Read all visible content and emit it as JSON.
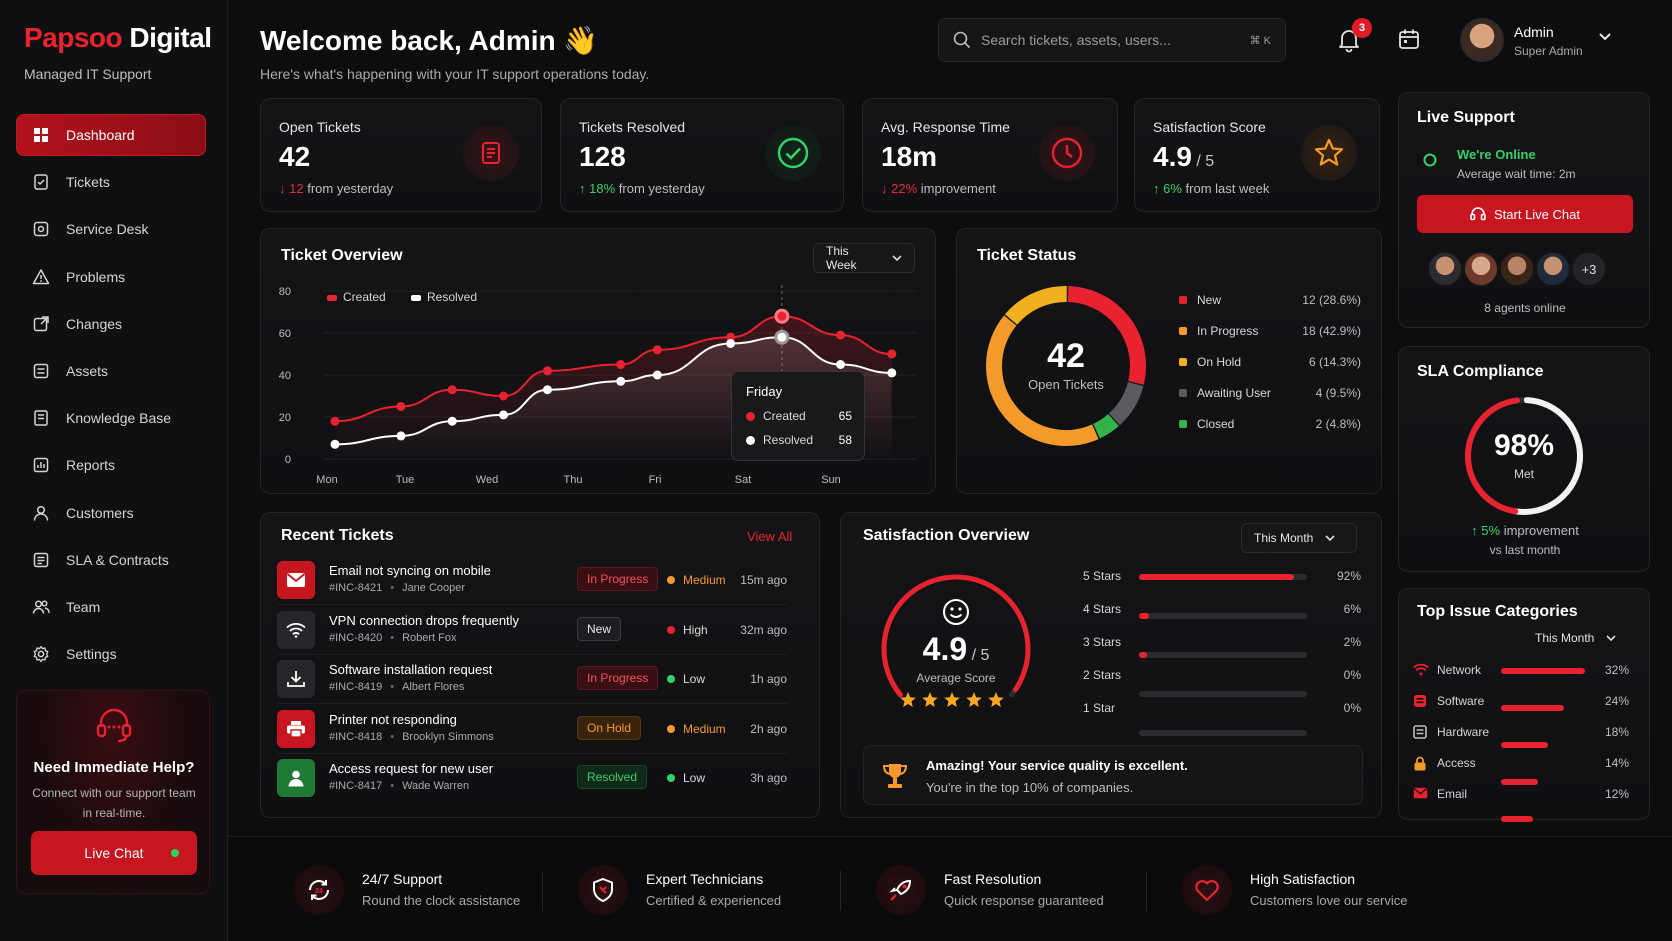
{
  "brand": {
    "name_part1": "Papsoo",
    "name_part2": " Digital",
    "subtitle": "Managed IT Support"
  },
  "nav": [
    {
      "label": "Dashboard",
      "icon": "grid-icon",
      "active": true
    },
    {
      "label": "Tickets",
      "icon": "ticket-icon"
    },
    {
      "label": "Service Desk",
      "icon": "service-desk-icon"
    },
    {
      "label": "Problems",
      "icon": "warning-icon"
    },
    {
      "label": "Changes",
      "icon": "changes-icon"
    },
    {
      "label": "Assets",
      "icon": "assets-icon"
    },
    {
      "label": "Knowledge Base",
      "icon": "book-icon"
    },
    {
      "label": "Reports",
      "icon": "reports-icon"
    },
    {
      "label": "Customers",
      "icon": "user-icon"
    },
    {
      "label": "SLA & Contracts",
      "icon": "contract-icon"
    },
    {
      "label": "Team",
      "icon": "team-icon"
    },
    {
      "label": "Settings",
      "icon": "gear-icon"
    }
  ],
  "help": {
    "title": "Need Immediate Help?",
    "subtitle": "Connect with our support team in real-time.",
    "button": "Live Chat"
  },
  "header": {
    "welcome": "Welcome back, Admin 👋",
    "subtitle": "Here's what's happening with your IT support operations today.",
    "search_placeholder": "Search tickets, assets, users...",
    "search_shortcut": "⌘ K",
    "notification_count": "3",
    "user_name": "Admin",
    "user_role": "Super Admin"
  },
  "stats": [
    {
      "label": "Open Tickets",
      "value": "42",
      "suffix": "",
      "delta_arrow": "↓",
      "delta_value": "12",
      "delta_text": " from yesterday",
      "trend": "down",
      "icon": "document-icon",
      "color": "#e8232f"
    },
    {
      "label": "Tickets Resolved",
      "value": "128",
      "suffix": "",
      "delta_arrow": "↑",
      "delta_value": "18%",
      "delta_text": " from yesterday",
      "trend": "up",
      "icon": "check-circle-icon",
      "color": "#34d26a"
    },
    {
      "label": "Avg. Response Time",
      "value": "18m",
      "suffix": "",
      "delta_arrow": "↓",
      "delta_value": "22%",
      "delta_text": " improvement",
      "trend": "down",
      "icon": "clock-icon",
      "color": "#e8232f"
    },
    {
      "label": "Satisfaction Score",
      "value": "4.9",
      "suffix": " / 5",
      "delta_arrow": "↑",
      "delta_value": "6%",
      "delta_text": " from last week",
      "trend": "up",
      "icon": "star-icon",
      "color": "#f39a2b"
    }
  ],
  "ticket_overview": {
    "title": "Ticket Overview",
    "range": "This Week",
    "tooltip": {
      "day": "Friday",
      "created_label": "Created",
      "created_value": "65",
      "resolved_label": "Resolved",
      "resolved_value": "58"
    }
  },
  "chart_data": {
    "type": "line",
    "categories": [
      "Mon",
      "Tue",
      "Wed",
      "Thu",
      "Fri",
      "Sat",
      "Sun"
    ],
    "series": [
      {
        "name": "Created",
        "color": "#e8232f",
        "values": [
          18,
          25,
          33,
          30,
          42,
          45,
          52,
          58,
          68,
          59,
          50
        ]
      },
      {
        "name": "Resolved",
        "color": "#ffffff",
        "values": [
          7,
          11,
          18,
          21,
          33,
          37,
          40,
          55,
          58,
          45,
          41
        ]
      }
    ],
    "x": [
      0,
      0.9,
      1.6,
      2.3,
      2.9,
      3.9,
      4.4,
      5.4,
      6.1,
      6.9,
      7.6
    ],
    "ylim": [
      0,
      80
    ],
    "yticks": [
      "80",
      "60",
      "40",
      "20",
      "0"
    ],
    "grid": true,
    "legend": "top-left"
  },
  "ticket_status": {
    "title": "Ticket Status",
    "center_value": "42",
    "center_label": "Open Tickets",
    "items": [
      {
        "label": "New",
        "value": "12 (28.6%)",
        "fraction": 0.286,
        "color": "#e8232f"
      },
      {
        "label": "In Progress",
        "value": "18 (42.9%)",
        "fraction": 0.429,
        "color": "#f39a2b"
      },
      {
        "label": "On Hold",
        "value": "6 (14.3%)",
        "fraction": 0.143,
        "color": "#f1b01d"
      },
      {
        "label": "Awaiting User",
        "value": "4 (9.5%)",
        "fraction": 0.095,
        "color": "#5a5a60"
      },
      {
        "label": "Closed",
        "value": "2 (4.8%)",
        "fraction": 0.048,
        "color": "#34b24a"
      }
    ]
  },
  "recent_tickets": {
    "title": "Recent Tickets",
    "view_all": "View All",
    "rows": [
      {
        "title": "Email not syncing on mobile",
        "id": "#INC-8421",
        "person": "Jane Cooper",
        "status": "In Progress",
        "status_class": "st-progress",
        "priority": "Medium",
        "priority_color": "#f39a2b",
        "time": "15m ago",
        "icon": "mail-icon",
        "icon_bg": "#c81620"
      },
      {
        "title": "VPN connection drops frequently",
        "id": "#INC-8420",
        "person": "Robert Fox",
        "status": "New",
        "status_class": "st-new",
        "priority": "High",
        "priority_color": "#e8232f",
        "time": "32m ago",
        "icon": "wifi-icon",
        "icon_bg": "#26262b"
      },
      {
        "title": "Software installation request",
        "id": "#INC-8419",
        "person": "Albert Flores",
        "status": "In Progress",
        "status_class": "st-progress",
        "priority": "Low",
        "priority_color": "#34d26a",
        "time": "1h ago",
        "icon": "download-icon",
        "icon_bg": "#26262b"
      },
      {
        "title": "Printer not responding",
        "id": "#INC-8418",
        "person": "Brooklyn Simmons",
        "status": "On Hold",
        "status_class": "st-hold",
        "priority": "Medium",
        "priority_color": "#f39a2b",
        "time": "2h ago",
        "icon": "printer-icon",
        "icon_bg": "#c81620"
      },
      {
        "title": "Access request for new user",
        "id": "#INC-8417",
        "person": "Wade Warren",
        "status": "Resolved",
        "status_class": "st-resolved",
        "priority": "Low",
        "priority_color": "#34d26a",
        "time": "3h ago",
        "icon": "user-icon",
        "icon_bg": "#1f7a36"
      }
    ]
  },
  "satisfaction": {
    "title": "Satisfaction Overview",
    "range": "This Month",
    "score": "4.9",
    "score_suffix": " / 5",
    "score_label": "Average Score",
    "score_fraction": 0.98,
    "stars": 5,
    "rows": [
      {
        "label": "5 Stars",
        "value": "92%",
        "fraction": 0.92
      },
      {
        "label": "4 Stars",
        "value": "6%",
        "fraction": 0.06
      },
      {
        "label": "3 Stars",
        "value": "2%",
        "fraction": 0.02
      },
      {
        "label": "2 Stars",
        "value": "0%",
        "fraction": 0
      },
      {
        "label": "1 Star",
        "value": "0%",
        "fraction": 0
      }
    ],
    "banner_title": "Amazing! Your service quality is excellent.",
    "banner_sub": "You're in the top 10% of companies."
  },
  "live_support": {
    "title": "Live Support",
    "status": "We're Online",
    "wait": "Average wait time: 2m",
    "button": "Start Live Chat",
    "more_agents": "+3",
    "agents_online": "8 agents online"
  },
  "sla": {
    "title": "SLA Compliance",
    "value": "98%",
    "label": "Met",
    "fraction": 0.98,
    "delta_value": "5%",
    "delta_text": " improvement",
    "delta_sub": "vs last month"
  },
  "top_issues": {
    "title": "Top Issue Categories",
    "range": "This Month",
    "items": [
      {
        "label": "Network",
        "value": "32%",
        "fraction": 0.32,
        "icon": "wifi-icon"
      },
      {
        "label": "Software",
        "value": "24%",
        "fraction": 0.24,
        "icon": "software-icon"
      },
      {
        "label": "Hardware",
        "value": "18%",
        "fraction": 0.18,
        "icon": "hardware-icon"
      },
      {
        "label": "Access",
        "value": "14%",
        "fraction": 0.14,
        "icon": "lock-icon"
      },
      {
        "label": "Email",
        "value": "12%",
        "fraction": 0.12,
        "icon": "mail-icon"
      }
    ]
  },
  "footer": [
    {
      "title": "24/7 Support",
      "sub": "Round the clock assistance",
      "icon": "support-cycle-icon"
    },
    {
      "title": "Expert Technicians",
      "sub": "Certified & experienced",
      "icon": "shield-icon"
    },
    {
      "title": "Fast Resolution",
      "sub": "Quick response guaranteed",
      "icon": "rocket-icon"
    },
    {
      "title": "High Satisfaction",
      "sub": "Customers love our service",
      "icon": "heart-icon"
    }
  ]
}
